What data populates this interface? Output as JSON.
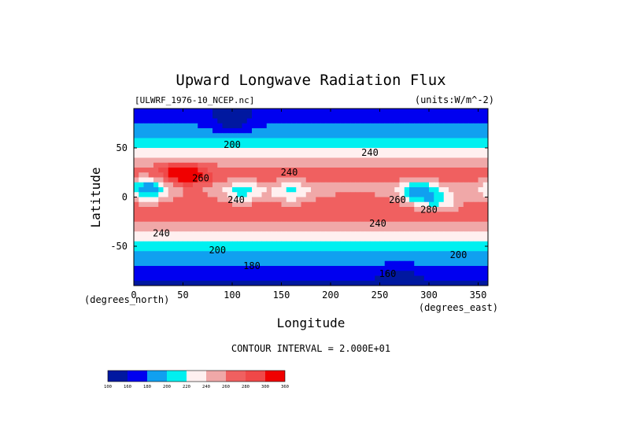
{
  "chart_data": {
    "type": "heatmap",
    "title": "Upward Longwave Radiation Flux",
    "subtitle_left": "[ULWRF_1976-10_NCEP.nc]",
    "units": "(units:W/m^-2)",
    "xlabel": "Longitude",
    "ylabel": "Latitude",
    "x_units": "(degrees_east)",
    "y_units": "(degrees_north)",
    "xlim": [
      0,
      360
    ],
    "ylim": [
      -90,
      90
    ],
    "x_ticks": [
      0,
      50,
      100,
      150,
      200,
      250,
      300,
      350
    ],
    "y_ticks": [
      50,
      0,
      -50
    ],
    "contour_interval_text": "CONTOUR INTERVAL = 2.000E+01",
    "contour_levels": [
      100,
      160,
      180,
      200,
      220,
      240,
      260,
      280,
      300,
      360
    ],
    "level_colors": [
      "#0018a0",
      "#0000f0",
      "#10a0f0",
      "#00f0f0",
      "#fff0f0",
      "#f0a8a8",
      "#f06060",
      "#f04848",
      "#f00000"
    ],
    "contour_labels": [
      {
        "text": "200",
        "lon": 100,
        "lat": 50
      },
      {
        "text": "240",
        "lon": 240,
        "lat": 42
      },
      {
        "text": "240",
        "lon": 158,
        "lat": 22
      },
      {
        "text": "260",
        "lon": 68,
        "lat": 16
      },
      {
        "text": "240",
        "lon": 104,
        "lat": -6
      },
      {
        "text": "260",
        "lon": 268,
        "lat": -6
      },
      {
        "text": "280",
        "lon": 300,
        "lat": -16
      },
      {
        "text": "240",
        "lon": 28,
        "lat": -40
      },
      {
        "text": "240",
        "lon": 248,
        "lat": -30
      },
      {
        "text": "200",
        "lon": 85,
        "lat": -57
      },
      {
        "text": "200",
        "lon": 330,
        "lat": -62
      },
      {
        "text": "180",
        "lon": 120,
        "lat": -73
      },
      {
        "text": "160",
        "lon": 258,
        "lat": -81
      }
    ],
    "field_sketch": {
      "zonal_profile": [
        {
          "lat": 90,
          "value": 160
        },
        {
          "lat": 80,
          "value": 170
        },
        {
          "lat": 70,
          "value": 185
        },
        {
          "lat": 60,
          "value": 200
        },
        {
          "lat": 50,
          "value": 218
        },
        {
          "lat": 40,
          "value": 238
        },
        {
          "lat": 30,
          "value": 262
        },
        {
          "lat": 20,
          "value": 272
        },
        {
          "lat": 10,
          "value": 255
        },
        {
          "lat": 0,
          "value": 262
        },
        {
          "lat": -10,
          "value": 272
        },
        {
          "lat": -20,
          "value": 275
        },
        {
          "lat": -30,
          "value": 255
        },
        {
          "lat": -40,
          "value": 232
        },
        {
          "lat": -50,
          "value": 212
        },
        {
          "lat": -60,
          "value": 195
        },
        {
          "lat": -70,
          "value": 180
        },
        {
          "lat": -80,
          "value": 165
        },
        {
          "lat": -90,
          "value": 155
        }
      ],
      "anomalies": [
        {
          "lon": 15,
          "lat": 8,
          "value": -75
        },
        {
          "lon": 110,
          "lat": 5,
          "value": -45
        },
        {
          "lon": 160,
          "lat": 5,
          "value": -40
        },
        {
          "lon": 290,
          "lat": 5,
          "value": -70
        },
        {
          "lon": 310,
          "lat": -5,
          "value": -45
        },
        {
          "lon": 45,
          "lat": 25,
          "value": 40
        },
        {
          "lon": 60,
          "lat": 22,
          "value": 30
        },
        {
          "lon": 100,
          "lat": 75,
          "value": -30
        },
        {
          "lon": 270,
          "lat": -78,
          "value": -15
        }
      ]
    }
  }
}
